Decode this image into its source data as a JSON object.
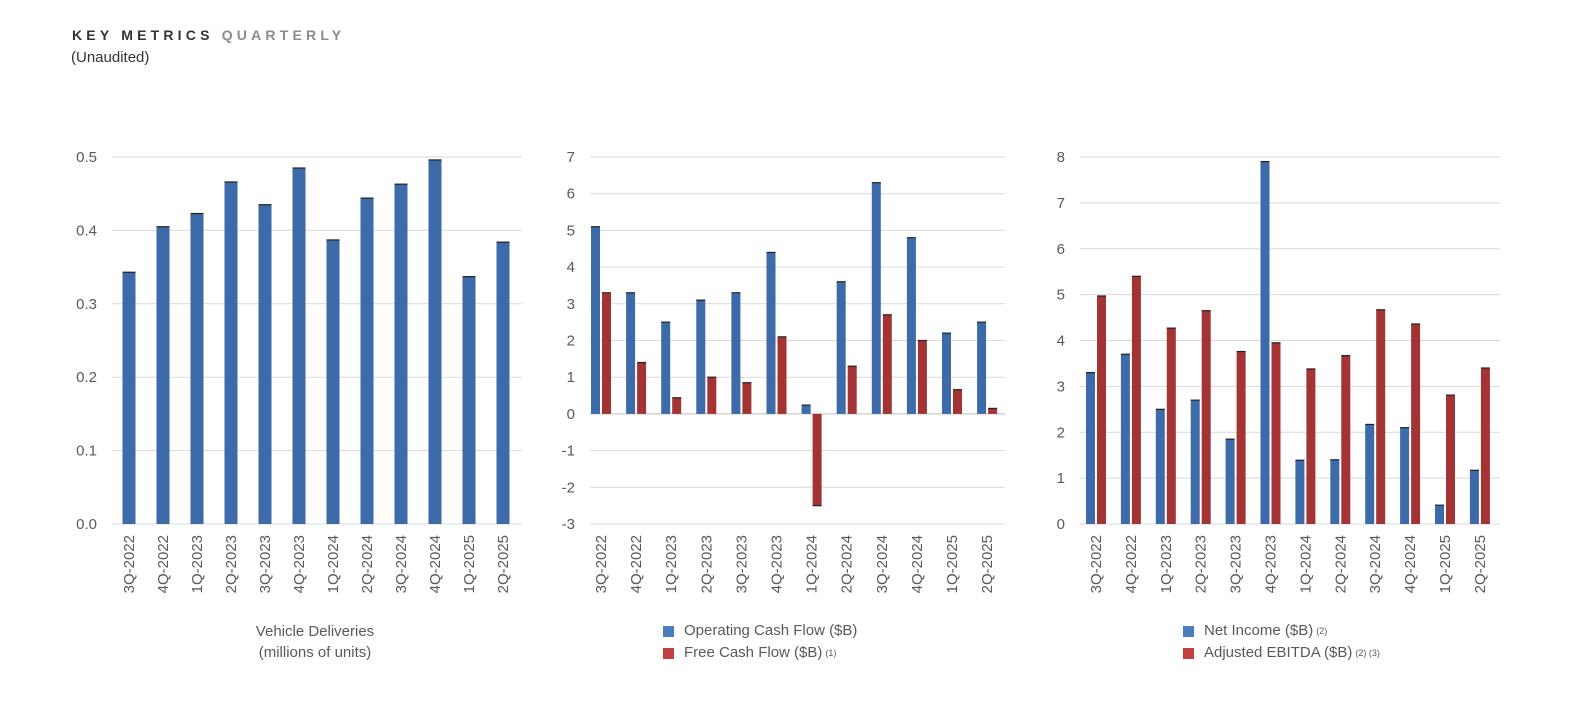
{
  "header": {
    "title_bold": "KEY METRICS",
    "title_light": "QUARTERLY",
    "subtitle": "(Unaudited)"
  },
  "colors": {
    "blue": "#3d6aa8",
    "red": "#a43333",
    "blue_legend": "#4a7cc0",
    "red_legend": "#c0403e",
    "grid": "#d9d9d9"
  },
  "chart_data": [
    {
      "type": "bar",
      "caption_line1": "Vehicle Deliveries",
      "caption_line2": "(millions of units)",
      "categories": [
        "3Q-2022",
        "4Q-2022",
        "1Q-2023",
        "2Q-2023",
        "3Q-2023",
        "4Q-2023",
        "1Q-2024",
        "2Q-2024",
        "3Q-2024",
        "4Q-2024",
        "1Q-2025",
        "2Q-2025"
      ],
      "ylim": [
        0,
        0.5
      ],
      "yticks": [
        "0.0",
        "0.1",
        "0.2",
        "0.3",
        "0.4",
        "0.5"
      ],
      "grid": true,
      "series": [
        {
          "values": [
            0.343,
            0.405,
            0.423,
            0.466,
            0.435,
            0.485,
            0.387,
            0.444,
            0.463,
            0.496,
            0.337,
            0.384
          ],
          "color": "#3d6aa8"
        }
      ]
    },
    {
      "type": "bar",
      "categories": [
        "3Q-2022",
        "4Q-2022",
        "1Q-2023",
        "2Q-2023",
        "3Q-2023",
        "4Q-2023",
        "1Q-2024",
        "2Q-2024",
        "3Q-2024",
        "4Q-2024",
        "1Q-2025",
        "2Q-2025"
      ],
      "ylim": [
        -3,
        7
      ],
      "yticks": [
        "-3",
        "-2",
        "-1",
        "0",
        "1",
        "2",
        "3",
        "4",
        "5",
        "6",
        "7"
      ],
      "grid": true,
      "legend": "bottom",
      "series": [
        {
          "name": "Operating Cash Flow ($B)",
          "note": "",
          "values": [
            5.1,
            3.3,
            2.5,
            3.1,
            3.3,
            4.4,
            0.24,
            3.6,
            6.3,
            4.8,
            2.2,
            2.5
          ],
          "color": "#3d6aa8"
        },
        {
          "name": "Free Cash Flow ($B)",
          "note": "(1)",
          "values": [
            3.3,
            1.4,
            0.44,
            1.0,
            0.85,
            2.1,
            -2.5,
            1.3,
            2.7,
            2.0,
            0.66,
            0.15
          ],
          "color": "#a43333"
        }
      ]
    },
    {
      "type": "bar",
      "categories": [
        "3Q-2022",
        "4Q-2022",
        "1Q-2023",
        "2Q-2023",
        "3Q-2023",
        "4Q-2023",
        "1Q-2024",
        "2Q-2024",
        "3Q-2024",
        "4Q-2024",
        "1Q-2025",
        "2Q-2025"
      ],
      "ylim": [
        0,
        8
      ],
      "yticks": [
        "0",
        "1",
        "2",
        "3",
        "4",
        "5",
        "6",
        "7",
        "8"
      ],
      "grid": true,
      "legend": "bottom",
      "series": [
        {
          "name": "Net Income ($B)",
          "note": "(2)",
          "values": [
            3.3,
            3.7,
            2.5,
            2.7,
            1.85,
            7.9,
            1.39,
            1.4,
            2.17,
            2.1,
            0.41,
            1.17
          ],
          "color": "#3d6aa8"
        },
        {
          "name": "Adjusted EBITDA ($B)",
          "note": "(2) (3)",
          "values": [
            4.97,
            5.4,
            4.27,
            4.65,
            3.76,
            3.95,
            3.38,
            3.67,
            4.67,
            4.36,
            2.81,
            3.4
          ],
          "color": "#a43333"
        }
      ]
    }
  ]
}
